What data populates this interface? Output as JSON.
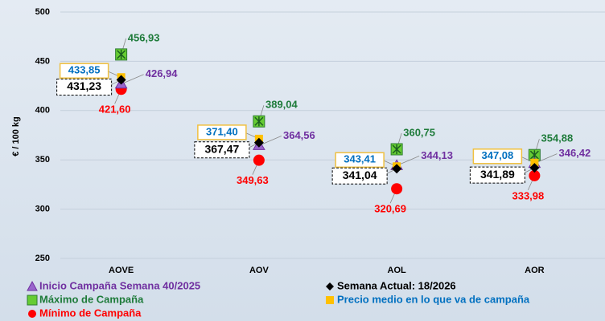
{
  "chart_data": {
    "type": "scatter",
    "ylabel": "€ / 100 kg",
    "categories": [
      "AOVE",
      "AOV",
      "AOL",
      "AOR"
    ],
    "ylim": [
      250,
      500
    ],
    "yticks": [
      250,
      300,
      350,
      400,
      450,
      500
    ],
    "grid": true,
    "series": [
      {
        "name": "Inicio Campaña Semana 40/2025",
        "color": "#9966cc",
        "text_color": "#7030a0",
        "values": [
          426.94,
          364.56,
          344.13,
          346.42
        ],
        "value_labels": [
          "426,94",
          "364,56",
          "344,13",
          "346,42"
        ]
      },
      {
        "name": "Semana Actual: 18/2026",
        "color": "#000000",
        "text_color": "#000000",
        "values": [
          431.23,
          367.47,
          341.04,
          341.89
        ],
        "value_labels": [
          "431,23",
          "367,47",
          "341,04",
          "341,89"
        ]
      },
      {
        "name": "Máximo de Campaña",
        "color": "#66cc33",
        "text_color": "#1e7b3a",
        "values": [
          456.93,
          389.04,
          360.75,
          354.88
        ],
        "value_labels": [
          "456,93",
          "389,04",
          "360,75",
          "354,88"
        ]
      },
      {
        "name": "Precio medio en lo que va de campaña",
        "color": "#ffc000",
        "text_color": "#0070c0",
        "values": [
          433.85,
          371.4,
          343.41,
          347.08
        ],
        "value_labels": [
          "433,85",
          "371,40",
          "343,41",
          "347,08"
        ]
      },
      {
        "name": "Mínimo de Campaña",
        "color": "#ff0000",
        "text_color": "#ff0000",
        "values": [
          421.6,
          349.63,
          320.69,
          333.98
        ],
        "value_labels": [
          "421,60",
          "349,63",
          "320,69",
          "333,98"
        ]
      }
    ]
  }
}
